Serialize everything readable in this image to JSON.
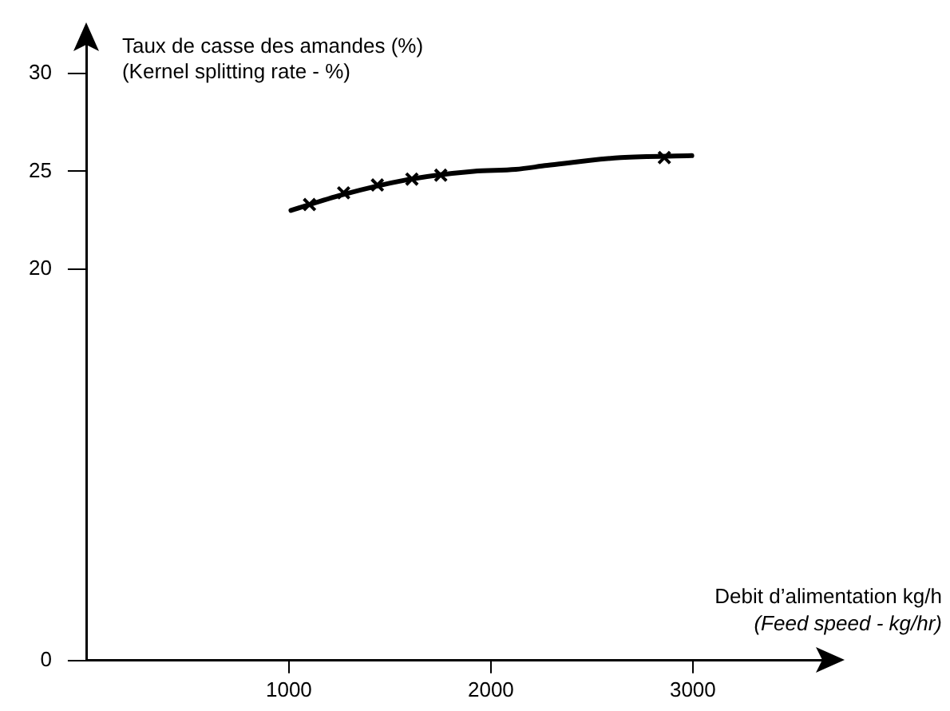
{
  "chart_data": {
    "type": "scatter",
    "ylabel": "Taux de casse des amandes (%)\n(Kernel splitting rate - %)",
    "xlabel": "Debit d’alimentation kg/h\n(Feed speed - kg/hr)",
    "xlim": [
      0,
      3720
    ],
    "ylim": [
      0,
      32.3
    ],
    "xticks": [
      1000,
      2000,
      3000
    ],
    "yticks": [
      0,
      20,
      25,
      30
    ],
    "series": [
      {
        "type": "scatter",
        "marker": "cross",
        "color": "#000000",
        "x": [
          1102,
          1271,
          1438,
          1609,
          1752,
          2859
        ],
        "values": [
          23.3,
          23.9,
          24.3,
          24.6,
          24.8,
          25.7
        ]
      },
      {
        "type": "line",
        "marker": "none",
        "line_style": "solid",
        "color": "#000000",
        "x": [
          1010,
          1263,
          1602,
          1914,
          2123,
          2279,
          2643,
          2995
        ],
        "values": [
          23.0,
          23.8,
          24.6,
          25.0,
          25.1,
          25.3,
          25.7,
          25.8
        ]
      }
    ]
  }
}
